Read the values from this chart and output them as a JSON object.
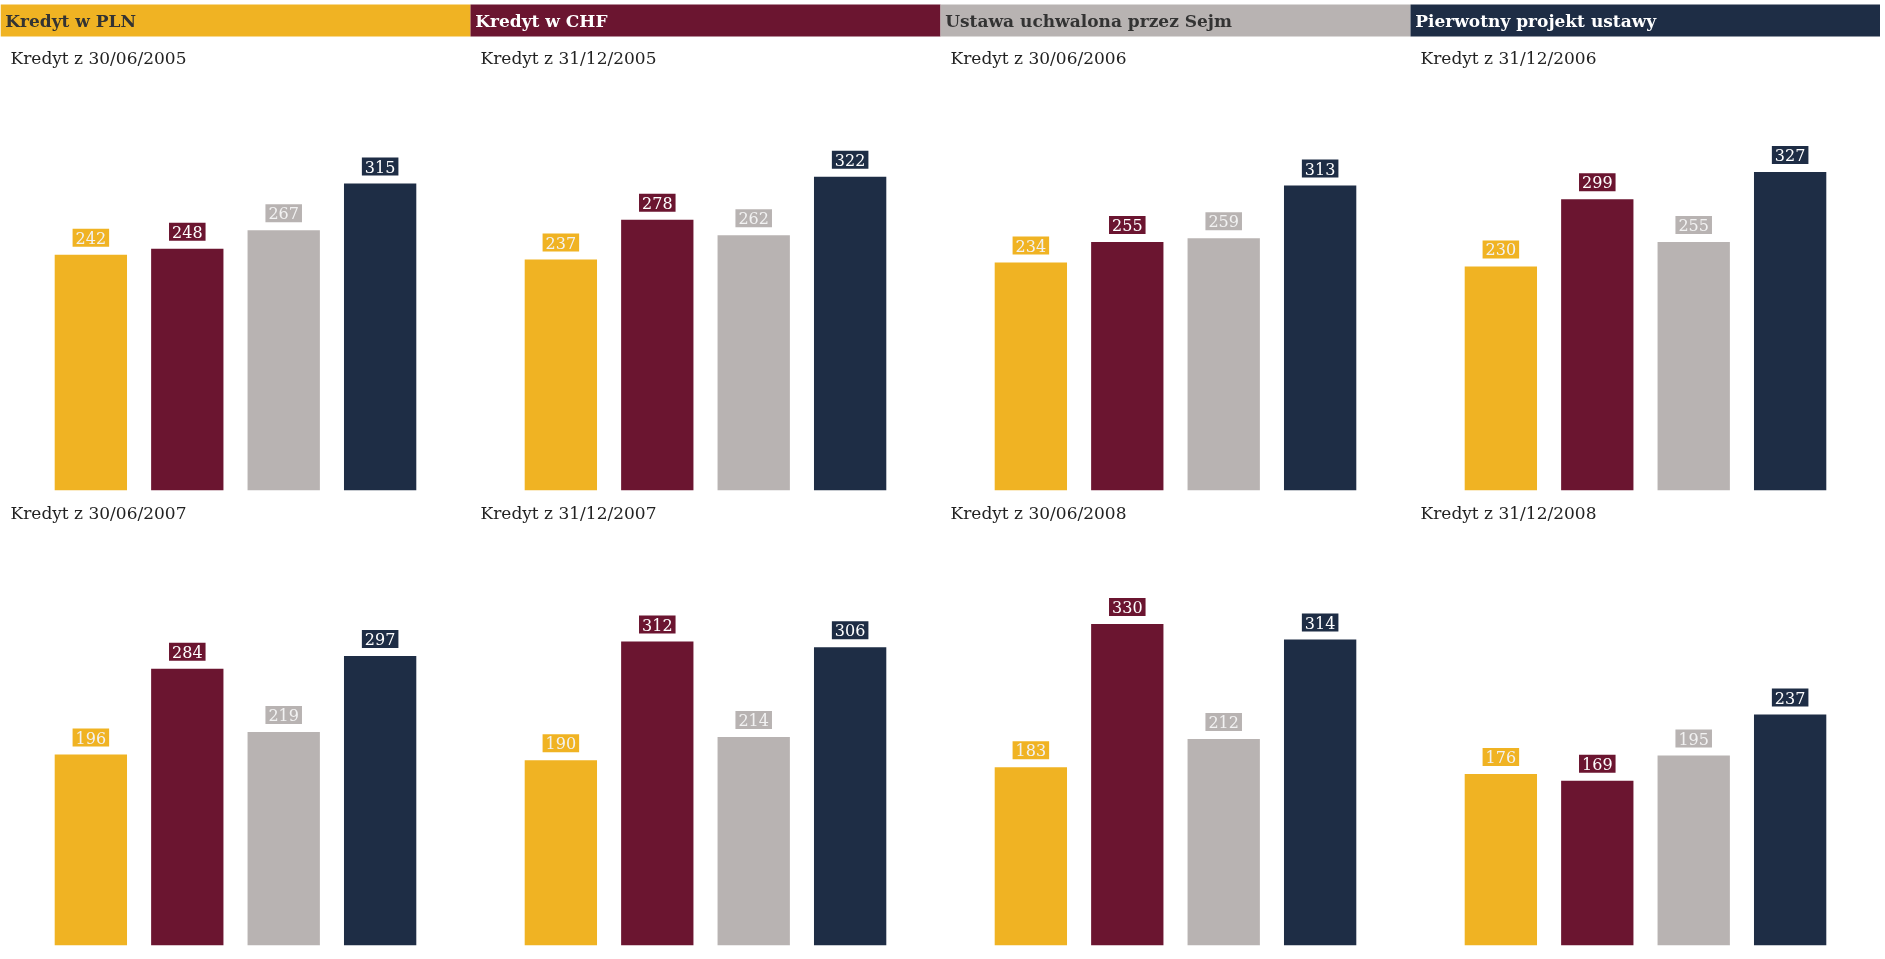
{
  "chart_data": [
    {
      "type": "bar",
      "title": "Kredyt z 30/06/2005",
      "categories": [
        null
      ],
      "data_labels": true,
      "legend": "top",
      "series": [
        {
          "name": "Kredyt w PLN",
          "color": "#f0b323",
          "values": [
            242
          ]
        },
        {
          "name": "Kredyt w CHF",
          "color": "#6b1530",
          "values": [
            248
          ]
        },
        {
          "name": "Ustawa uchwalona przez Sejm",
          "color": "#b8b3b2",
          "values": [
            267
          ]
        },
        {
          "name": "Pierwotny projekt ustawy",
          "color": "#1e2d45",
          "values": [
            315
          ]
        }
      ]
    },
    {
      "type": "bar",
      "title": "Kredyt z 31/12/2005",
      "categories": [
        null
      ],
      "data_labels": true,
      "series": [
        {
          "color": "#f0b323",
          "values": [
            237
          ]
        },
        {
          "color": "#6b1530",
          "values": [
            278
          ]
        },
        {
          "color": "#b8b3b2",
          "values": [
            262
          ]
        },
        {
          "color": "#1e2d45",
          "values": [
            322
          ]
        }
      ]
    },
    {
      "type": "bar",
      "title": "Kredyt z 30/06/2006",
      "categories": [
        null
      ],
      "data_labels": true,
      "series": [
        {
          "color": "#f0b323",
          "values": [
            234
          ]
        },
        {
          "color": "#6b1530",
          "values": [
            255
          ]
        },
        {
          "color": "#b8b3b2",
          "values": [
            259
          ]
        },
        {
          "color": "#1e2d45",
          "values": [
            313
          ]
        }
      ]
    },
    {
      "type": "bar",
      "title": "Kredyt z 31/12/2006",
      "categories": [
        null
      ],
      "data_labels": true,
      "series": [
        {
          "color": "#f0b323",
          "values": [
            230
          ]
        },
        {
          "color": "#6b1530",
          "values": [
            299
          ]
        },
        {
          "color": "#b8b3b2",
          "values": [
            255
          ]
        },
        {
          "color": "#1e2d45",
          "values": [
            327
          ]
        }
      ]
    },
    {
      "type": "bar",
      "title": "Kredyt z 30/06/2007",
      "categories": [
        null
      ],
      "data_labels": true,
      "series": [
        {
          "color": "#f0b323",
          "values": [
            196
          ]
        },
        {
          "color": "#6b1530",
          "values": [
            284
          ]
        },
        {
          "color": "#b8b3b2",
          "values": [
            219
          ]
        },
        {
          "color": "#1e2d45",
          "values": [
            297
          ]
        }
      ]
    },
    {
      "type": "bar",
      "title": "Kredyt z 31/12/2007",
      "categories": [
        null
      ],
      "data_labels": true,
      "series": [
        {
          "color": "#f0b323",
          "values": [
            190
          ]
        },
        {
          "color": "#6b1530",
          "values": [
            312
          ]
        },
        {
          "color": "#b8b3b2",
          "values": [
            214
          ]
        },
        {
          "color": "#1e2d45",
          "values": [
            306
          ]
        }
      ]
    },
    {
      "type": "bar",
      "title": "Kredyt z 30/06/2008",
      "categories": [
        null
      ],
      "data_labels": true,
      "series": [
        {
          "color": "#f0b323",
          "values": [
            183
          ]
        },
        {
          "color": "#6b1530",
          "values": [
            330
          ]
        },
        {
          "color": "#b8b3b2",
          "values": [
            212
          ]
        },
        {
          "color": "#1e2d45",
          "values": [
            314
          ]
        }
      ]
    },
    {
      "type": "bar",
      "title": "Kredyt z 31/12/2008",
      "categories": [
        null
      ],
      "data_labels": true,
      "series": [
        {
          "color": "#f0b323",
          "values": [
            176
          ]
        },
        {
          "color": "#6b1530",
          "values": [
            169
          ]
        },
        {
          "color": "#b8b3b2",
          "values": [
            195
          ]
        },
        {
          "color": "#1e2d45",
          "values": [
            237
          ]
        }
      ]
    }
  ]
}
